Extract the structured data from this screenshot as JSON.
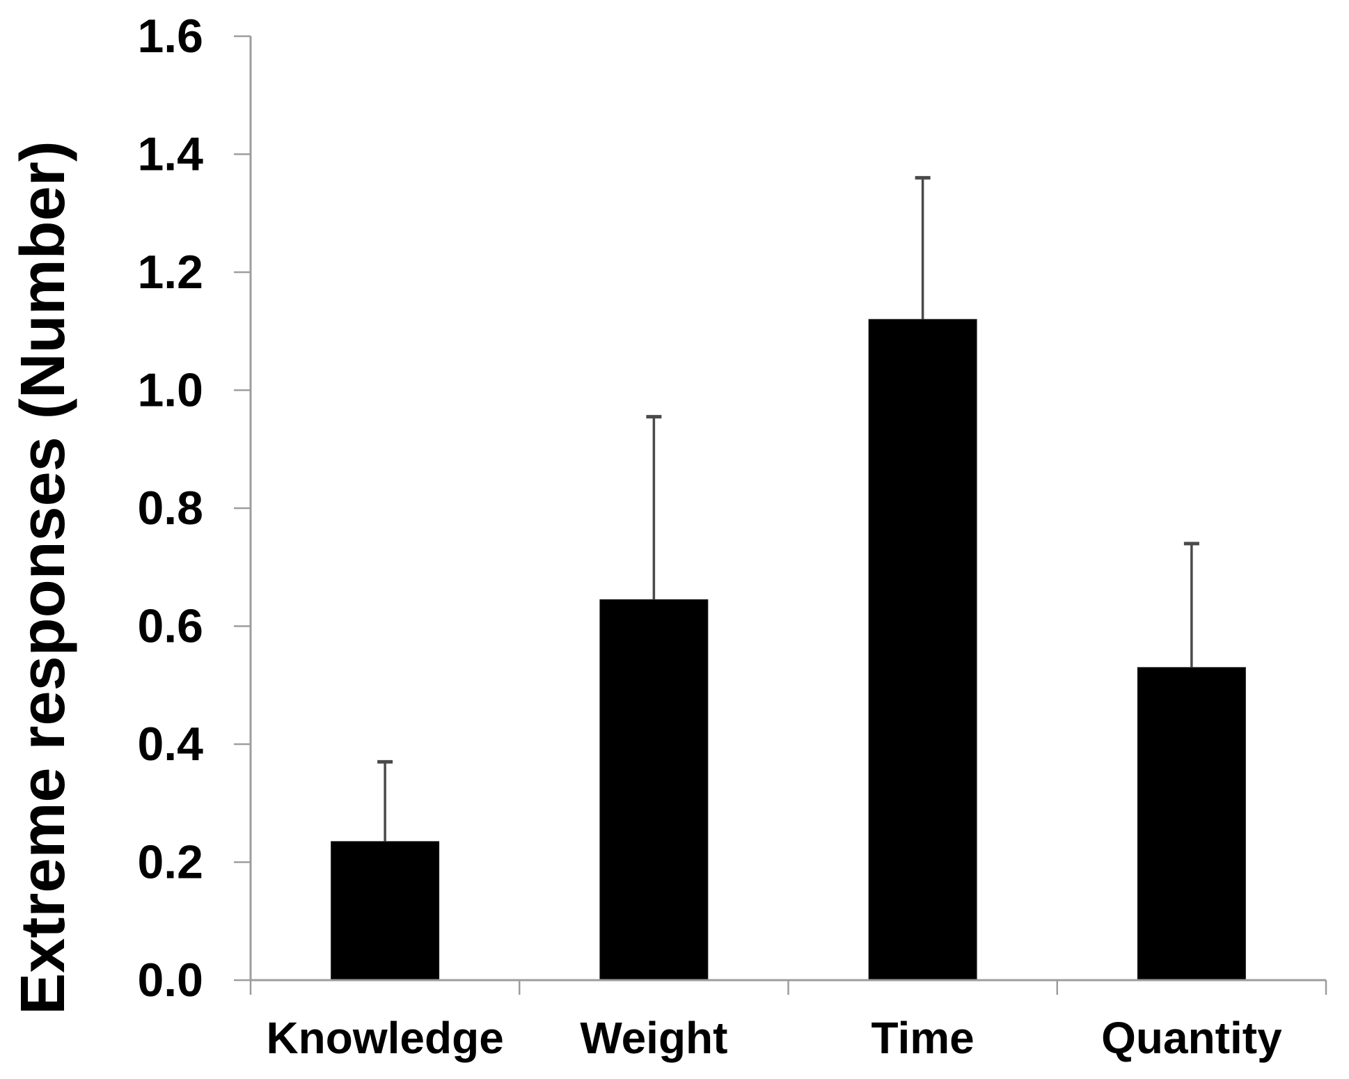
{
  "chart_data": {
    "type": "bar",
    "title": "",
    "categories": [
      "Knowledge",
      "Weight",
      "Time",
      "Quantity"
    ],
    "values": [
      0.235,
      0.645,
      1.12,
      0.53
    ],
    "errors_plus": [
      0.135,
      0.31,
      0.24,
      0.21
    ],
    "xlabel": "",
    "ylabel": "Extreme responses (Number)",
    "ylim": [
      0,
      1.6
    ],
    "ytick_step": 0.2,
    "ytick_labels": [
      "0.0",
      "0.2",
      "0.4",
      "0.6",
      "0.8",
      "1.0",
      "1.2",
      "1.4",
      "1.6"
    ],
    "grid": false,
    "legend": false,
    "colors": {
      "bar_fill": "#000000",
      "axis_line": "#9d9d9d",
      "tick_mark": "#9d9d9d",
      "error_bar": "#4a4a4a",
      "text": "#000000",
      "background": "#ffffff"
    }
  }
}
